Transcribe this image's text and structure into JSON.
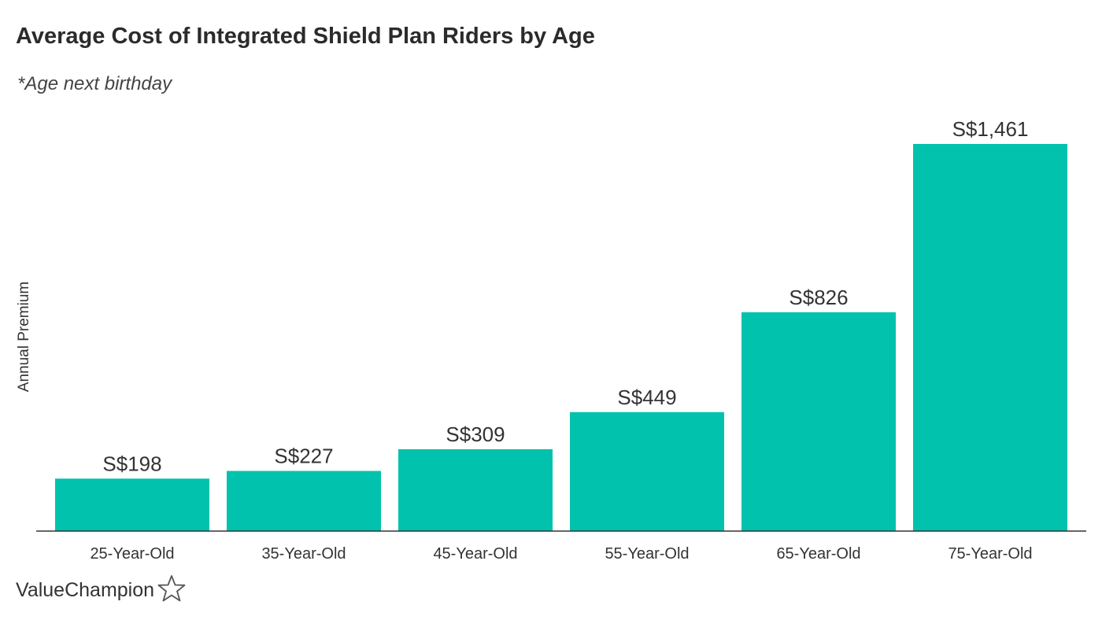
{
  "brand": {
    "name": "ValueChampion",
    "icon": "star-outline-icon"
  },
  "chart_data": {
    "type": "bar",
    "title": "Average Cost of Integrated Shield Plan Riders by Age",
    "subtitle": "*Age next birthday",
    "xlabel": "",
    "ylabel": "Annual Premium",
    "categories": [
      "25-Year-Old",
      "35-Year-Old",
      "45-Year-Old",
      "55-Year-Old",
      "65-Year-Old",
      "75-Year-Old"
    ],
    "values": [
      198,
      227,
      309,
      449,
      826,
      1461
    ],
    "value_labels": [
      "S$198",
      "S$227",
      "S$309",
      "S$449",
      "S$826",
      "S$1,461"
    ],
    "ylim": [
      0,
      1461
    ],
    "grid": false,
    "legend": "none",
    "bar_color": "#00c2ad"
  }
}
